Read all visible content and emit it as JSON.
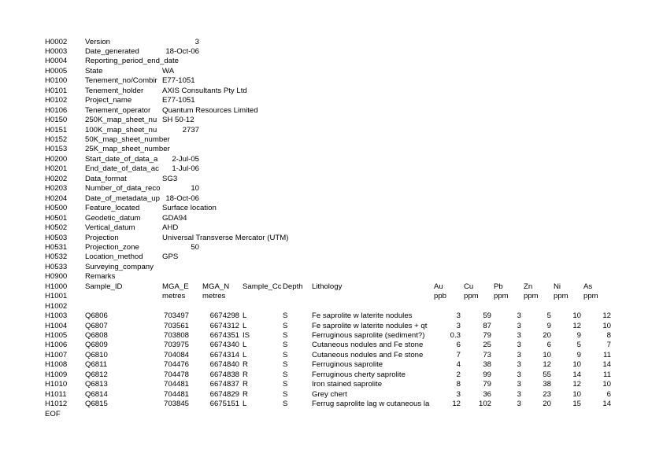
{
  "header_rows": [
    {
      "code": "H0002",
      "field": "Version",
      "value": "",
      "num": "3"
    },
    {
      "code": "H0003",
      "field": "Date_generated",
      "value": "",
      "num": "18-Oct-06"
    },
    {
      "code": "H0004",
      "field": "Reporting_period_end_date",
      "value": "",
      "num": ""
    },
    {
      "code": "H0005",
      "field": "State",
      "value": "WA",
      "num": ""
    },
    {
      "code": "H0100",
      "field": "Tenement_no/Combir",
      "value": "E77-1051",
      "num": ""
    },
    {
      "code": "H0101",
      "field": "Tenement_holder",
      "value": "AXIS Consultants Pty Ltd",
      "num": ""
    },
    {
      "code": "H0102",
      "field": "Project_name",
      "value": "E77-1051",
      "num": ""
    },
    {
      "code": "H0106",
      "field": "Tenement_operator",
      "value": "Quantum Resources Limited",
      "num": ""
    },
    {
      "code": "H0150",
      "field": "250K_map_sheet_nu",
      "value": "SH 50-12",
      "num": ""
    },
    {
      "code": "H0151",
      "field": "100K_map_sheet_nu",
      "value": "",
      "num": "2737"
    },
    {
      "code": "H0152",
      "field": "50K_map_sheet_number",
      "value": "",
      "num": ""
    },
    {
      "code": "H0153",
      "field": "25K_map_sheet_number",
      "value": "",
      "num": ""
    },
    {
      "code": "H0200",
      "field": "Start_date_of_data_a",
      "value": "",
      "num": "2-Jul-05"
    },
    {
      "code": "H0201",
      "field": "End_date_of_data_ac",
      "value": "",
      "num": "1-Jul-06"
    },
    {
      "code": "H0202",
      "field": "Data_format",
      "value": "SG3",
      "num": ""
    },
    {
      "code": "H0203",
      "field": "Number_of_data_reco",
      "value": "",
      "num": "10"
    },
    {
      "code": "H0204",
      "field": "Date_of_metadata_up",
      "value": "",
      "num": "18-Oct-06"
    },
    {
      "code": "H0500",
      "field": "Feature_located",
      "value": "Surface location",
      "num": ""
    },
    {
      "code": "H0501",
      "field": "Geodetic_datum",
      "value": "GDA94",
      "num": ""
    },
    {
      "code": "H0502",
      "field": "Vertical_datum",
      "value": "AHD",
      "num": ""
    },
    {
      "code": "H0503",
      "field": "Projection",
      "value": "Universal Transverse Mercator (UTM)",
      "num": ""
    },
    {
      "code": "H0531",
      "field": "Projection_zone",
      "value": "",
      "num": "50"
    },
    {
      "code": "H0532",
      "field": "Location_method",
      "value": "GPS",
      "num": ""
    },
    {
      "code": "H0533",
      "field": "Surveying_company",
      "value": "",
      "num": ""
    },
    {
      "code": "H0900",
      "field": "Remarks",
      "value": "",
      "num": ""
    }
  ],
  "column_header": {
    "code": "H1000",
    "labels": [
      "Sample_ID",
      "MGA_E",
      "MGA_N",
      "Sample_Cc",
      "Depth",
      "Lithology",
      "Au",
      "Cu",
      "Pb",
      "Zn",
      "Ni",
      "As"
    ]
  },
  "units_row": {
    "code": "H1001",
    "units": [
      "",
      "metres",
      "metres",
      "",
      "",
      "",
      "ppb",
      "ppm",
      "ppm",
      "ppm",
      "ppm",
      "ppm"
    ]
  },
  "blank_row": {
    "code": "H1002"
  },
  "data_rows": [
    {
      "code": "H1003",
      "cells": [
        "Q6806",
        "703497",
        "6674298",
        "L",
        "S",
        "Fe saprolite w laterite nodules",
        "3",
        "59",
        "3",
        "5",
        "10",
        "12"
      ]
    },
    {
      "code": "H1004",
      "cells": [
        "Q6807",
        "703561",
        "6674312",
        "L",
        "S",
        "Fe saprolite w laterite nodules + qt",
        "3",
        "87",
        "3",
        "9",
        "12",
        "10"
      ]
    },
    {
      "code": "H1005",
      "cells": [
        "Q6808",
        "703808",
        "6674351",
        "IS",
        "S",
        "Ferruginous saprolite (sediment?)",
        "0.3",
        "79",
        "3",
        "20",
        "9",
        "8"
      ]
    },
    {
      "code": "H1006",
      "cells": [
        "Q6809",
        "703975",
        "6674340",
        "L",
        "S",
        "Cutaneous nodules and Fe stone",
        "6",
        "25",
        "3",
        "6",
        "5",
        "7"
      ]
    },
    {
      "code": "H1007",
      "cells": [
        "Q6810",
        "704084",
        "6674314",
        "L",
        "S",
        "Cutaneous nodules and Fe stone",
        "7",
        "73",
        "3",
        "10",
        "9",
        "11"
      ]
    },
    {
      "code": "H1008",
      "cells": [
        "Q6811",
        "704476",
        "6674840",
        "R",
        "S",
        "Ferruginous saprolite",
        "4",
        "38",
        "3",
        "12",
        "10",
        "14"
      ]
    },
    {
      "code": "H1009",
      "cells": [
        "Q6812",
        "704478",
        "6674838",
        "R",
        "S",
        "Ferruginous cherty saprolite",
        "2",
        "99",
        "3",
        "55",
        "14",
        "11"
      ]
    },
    {
      "code": "H1010",
      "cells": [
        "Q6813",
        "704481",
        "6674837",
        "R",
        "S",
        "Iron stained saprolite",
        "8",
        "79",
        "3",
        "38",
        "12",
        "10"
      ]
    },
    {
      "code": "H1011",
      "cells": [
        "Q6814",
        "704481",
        "6674829",
        "R",
        "S",
        "Grey chert",
        "3",
        "36",
        "3",
        "23",
        "10",
        "6"
      ]
    },
    {
      "code": "H1012",
      "cells": [
        "Q6815",
        "703845",
        "6675151",
        "L",
        "S",
        "Ferrug saprolite lag w cutaneous la",
        "12",
        "102",
        "3",
        "20",
        "15",
        "14"
      ]
    }
  ],
  "eof": "EOF"
}
